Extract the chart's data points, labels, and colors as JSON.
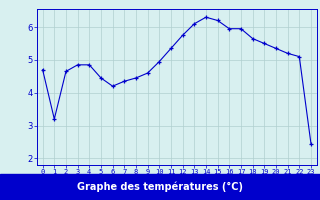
{
  "hours": [
    0,
    1,
    2,
    3,
    4,
    5,
    6,
    7,
    8,
    9,
    10,
    11,
    12,
    13,
    14,
    15,
    16,
    17,
    18,
    19,
    20,
    21,
    22,
    23
  ],
  "temps": [
    4.7,
    3.2,
    4.65,
    4.85,
    4.85,
    4.45,
    4.2,
    4.35,
    4.45,
    4.6,
    4.95,
    5.35,
    5.75,
    6.1,
    6.3,
    6.2,
    5.95,
    5.95,
    5.65,
    5.5,
    5.35,
    5.2,
    5.1,
    2.45
  ],
  "bg_color": "#d8f0f0",
  "line_color": "#0000cc",
  "marker_color": "#0000cc",
  "grid_color": "#b0d0d0",
  "xlabel": "Graphe des températures (°C)",
  "xlabel_bg": "#0000cc",
  "xlabel_color": "#ffffff",
  "ylim": [
    1.8,
    6.55
  ],
  "yticks": [
    2,
    3,
    4,
    5,
    6
  ],
  "xlim": [
    -0.5,
    23.5
  ],
  "xticks": [
    0,
    1,
    2,
    3,
    4,
    5,
    6,
    7,
    8,
    9,
    10,
    11,
    12,
    13,
    14,
    15,
    16,
    17,
    18,
    19,
    20,
    21,
    22,
    23
  ],
  "xtick_labels": [
    "0",
    "1",
    "2",
    "3",
    "4",
    "5",
    "6",
    "7",
    "8",
    "9",
    "10",
    "11",
    "12",
    "13",
    "14",
    "15",
    "16",
    "17",
    "18",
    "19",
    "20",
    "21",
    "22",
    "23"
  ],
  "tick_fontsize": 5.0,
  "xlabel_fontsize": 7.0,
  "ytick_fontsize": 6.0
}
